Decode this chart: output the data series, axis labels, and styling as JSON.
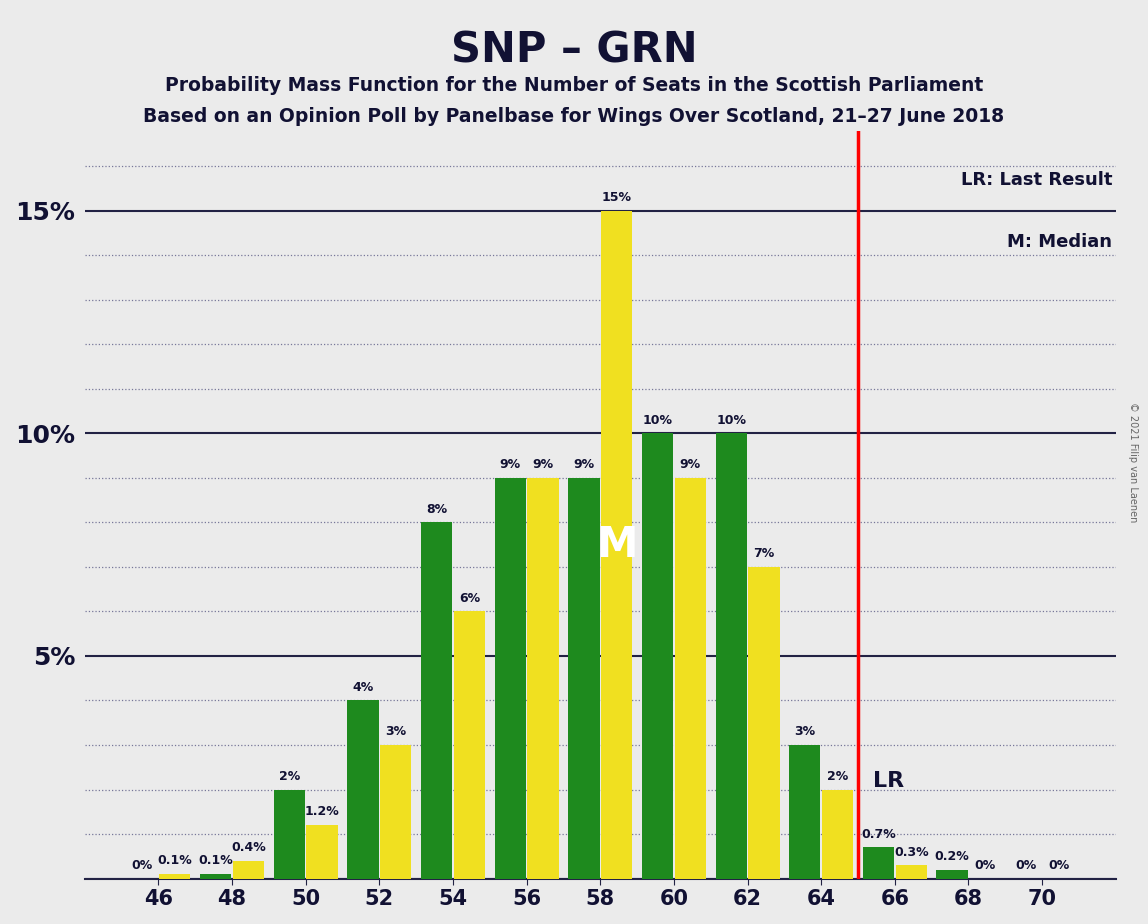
{
  "title": "SNP – GRN",
  "subtitle1": "Probability Mass Function for the Number of Seats in the Scottish Parliament",
  "subtitle2": "Based on an Opinion Poll by Panelbase for Wings Over Scotland, 21–27 June 2018",
  "copyright": "© 2021 Filip van Laenen",
  "x_tick_labels": [
    46,
    48,
    50,
    52,
    54,
    56,
    58,
    60,
    62,
    64,
    66,
    68,
    70
  ],
  "green_values": [
    0.0,
    0.1,
    2.0,
    4.0,
    8.0,
    9.0,
    9.0,
    10.0,
    10.0,
    3.0,
    0.7,
    0.2,
    0.0
  ],
  "yellow_values": [
    0.1,
    0.4,
    1.2,
    3.0,
    6.0,
    9.0,
    15.0,
    9.0,
    7.0,
    2.0,
    0.3,
    0.0,
    0.0
  ],
  "green_color": "#1e8a1e",
  "yellow_color": "#f0e020",
  "background_color": "#ebebeb",
  "bar_width": 0.85,
  "lr_x": 65.0,
  "median_bar_tick": 58,
  "median_label": "M",
  "median_y": 7.5,
  "ylim": [
    0,
    16.8
  ],
  "major_yticks": [
    0,
    5,
    10,
    15
  ],
  "text_color": "#111133",
  "title_fontsize": 30,
  "subtitle_fontsize": 13.5,
  "bar_label_fontsize": 9,
  "ytick_fontsize": 18,
  "xtick_fontsize": 15,
  "legend_lr": "LR: Last Result",
  "legend_m": "M: Median",
  "lr_label": "LR"
}
